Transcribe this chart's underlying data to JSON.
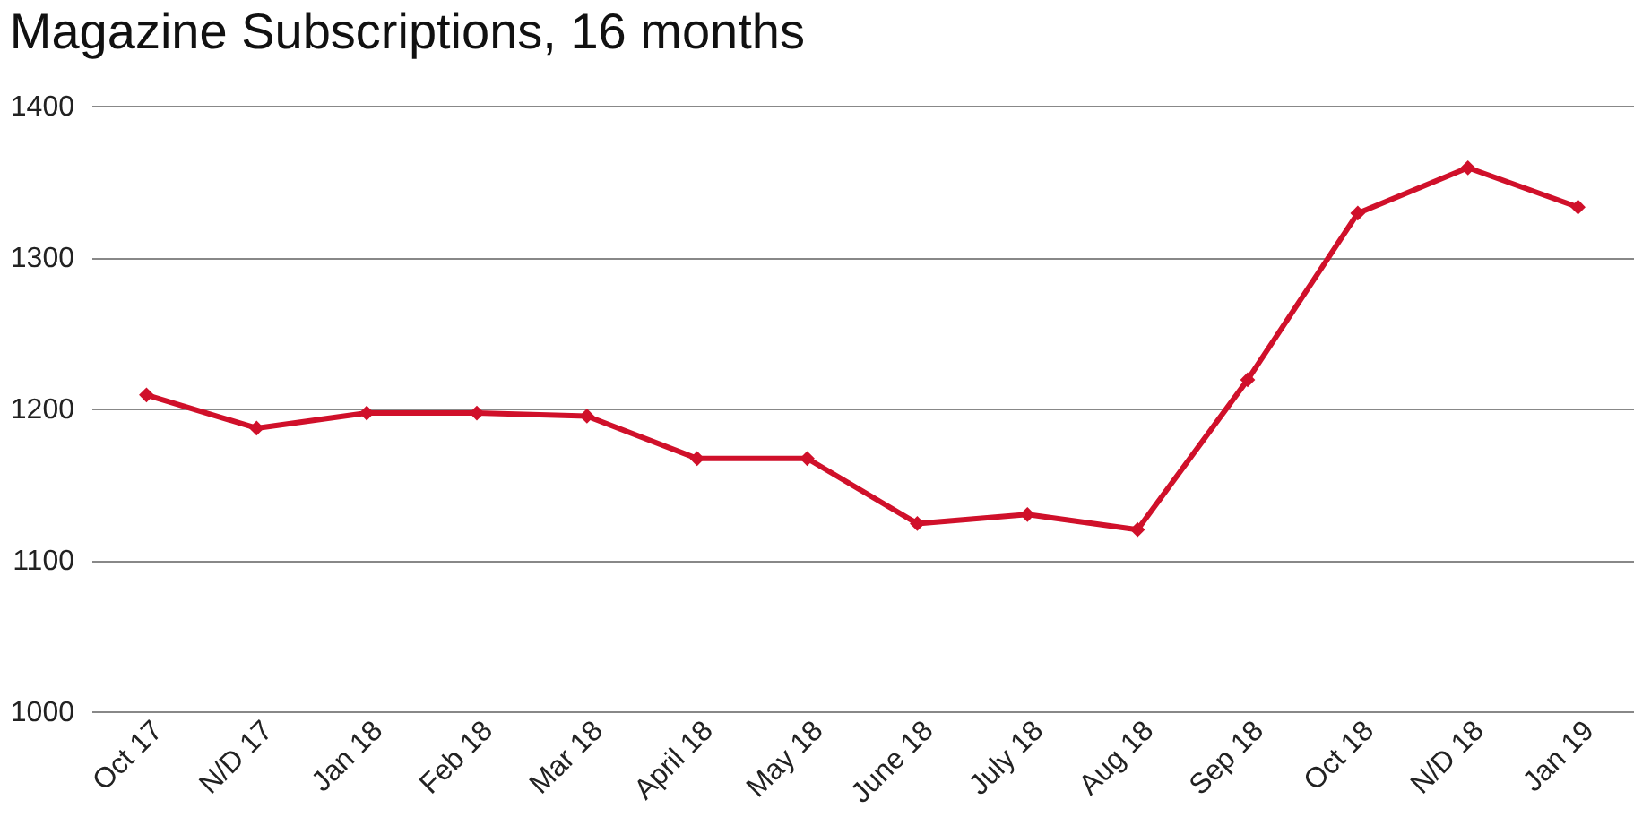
{
  "chart_data": {
    "type": "line",
    "title": "Magazine Subscriptions, 16 months",
    "categories": [
      "Oct 17",
      "N/D 17",
      "Jan 18",
      "Feb 18",
      "Mar 18",
      "April 18",
      "May 18",
      "June 18",
      "July 18",
      "Aug 18",
      "Sep 18",
      "Oct 18",
      "N/D 18",
      "Jan 19"
    ],
    "series": [
      {
        "color": "#d0102a",
        "values": [
          1209,
          1187,
          1197,
          1197,
          1195,
          1167,
          1167,
          1124,
          1130,
          1120,
          1219,
          1329,
          1359,
          1333
        ]
      }
    ],
    "ylim": [
      1000,
      1400
    ],
    "yticks": [
      1000,
      1100,
      1200,
      1300,
      1400
    ],
    "grid": "y",
    "marker": "diamond",
    "line_style": "solid"
  }
}
